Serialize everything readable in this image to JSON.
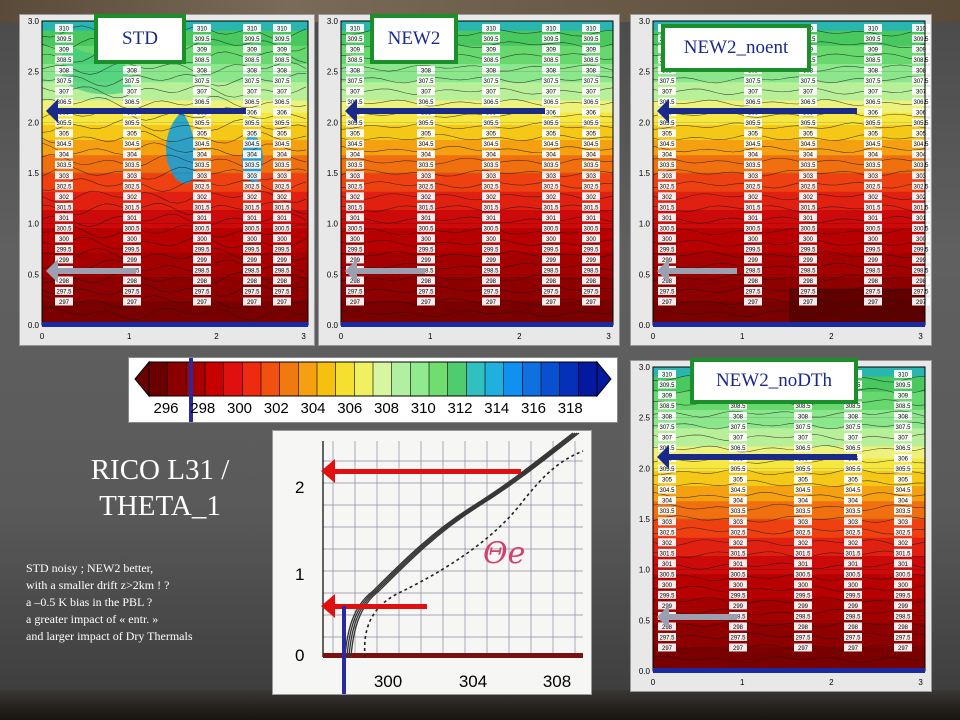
{
  "panels": {
    "std": {
      "label": "STD"
    },
    "new2": {
      "label": "NEW2"
    },
    "new2_noent": {
      "label": "NEW2_noent"
    },
    "new2_nodth": {
      "label": "NEW2_noDTh"
    }
  },
  "y_ticks": [
    "0.0",
    "0.5",
    "1.0",
    "1.5",
    "2.0",
    "2.5",
    "3.0"
  ],
  "x_ticks": [
    "0",
    "1",
    "2",
    "3"
  ],
  "colorbar": {
    "ticks": [
      "296",
      "298",
      "300",
      "302",
      "304",
      "306",
      "308",
      "310",
      "312",
      "314",
      "316",
      "318"
    ],
    "colors": [
      "#6a0000",
      "#8a0000",
      "#a80000",
      "#c80000",
      "#e01010",
      "#ee2a10",
      "#f05010",
      "#f07a10",
      "#f5a010",
      "#f5c010",
      "#f5e030",
      "#f0f060",
      "#d8f5a0",
      "#b0f0a0",
      "#90ea90",
      "#70dd70",
      "#50cc70",
      "#30c0c0",
      "#20b0e0",
      "#1090f0",
      "#1070e0",
      "#0850d0",
      "#0630b8",
      "#0418a0"
    ]
  },
  "title": {
    "line1": "RICO L31 /",
    "line2": "THETA_1"
  },
  "notes": [
    "STD noisy ; NEW2 better,",
    "with a smaller drift z>2km ! ?",
    "a –0.5 K bias in the PBL ?",
    "a greater impact of « entr. »",
    "and larger impact of Dry Thermals"
  ],
  "profile": {
    "y_ticks": [
      "0",
      "1",
      "2"
    ],
    "x_ticks": [
      "300",
      "304",
      "308"
    ],
    "handwritten": "Θe"
  },
  "contour_labels": [
    "310",
    "309.5",
    "309",
    "308.5",
    "308",
    "307.5",
    "307",
    "306.5",
    "306",
    "305.5",
    "305",
    "304.5",
    "304",
    "303.5",
    "303",
    "302.5",
    "302",
    "301.5",
    "301",
    "300.5",
    "300",
    "299.5",
    "299",
    "298.5",
    "298",
    "297.5",
    "297"
  ]
}
